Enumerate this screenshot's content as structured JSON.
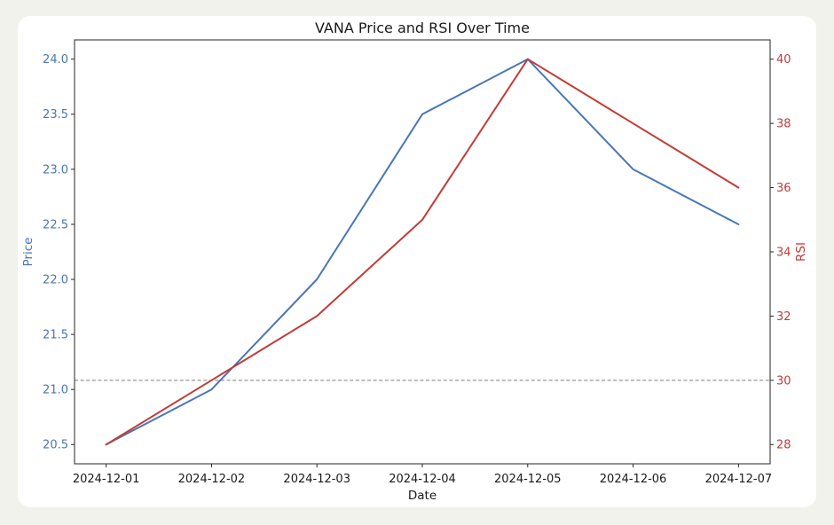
{
  "page": {
    "background_color": "#f0f2eb",
    "card_color": "#ffffff",
    "axis_color": "#262626",
    "text_color": "#1a1a1a"
  },
  "chart_data": {
    "type": "line",
    "title": "VANA Price and RSI Over Time",
    "xlabel": "Date",
    "x_tick_labels": [
      "2024-12-01",
      "2024-12-02",
      "2024-12-03",
      "2024-12-04",
      "2024-12-05",
      "2024-12-06",
      "2024-12-07"
    ],
    "left_axis": {
      "label": "Price",
      "color": "#4a76b6",
      "ticks": [
        20.5,
        21.0,
        21.5,
        22.0,
        22.5,
        23.0,
        23.5,
        24.0
      ],
      "tick_labels": [
        "20.5",
        "21.0",
        "21.5",
        "22.0",
        "22.5",
        "23.0",
        "23.5",
        "24.0"
      ],
      "range": [
        20.325,
        24.175
      ]
    },
    "right_axis": {
      "label": "RSI",
      "color": "#c23c39",
      "ticks": [
        28,
        30,
        32,
        34,
        36,
        38,
        40
      ],
      "tick_labels": [
        "28",
        "30",
        "32",
        "34",
        "36",
        "38",
        "40"
      ],
      "range": [
        27.4,
        40.6
      ]
    },
    "series": [
      {
        "name": "Price",
        "axis": "left",
        "color": "#4a76b6",
        "values": [
          20.5,
          21.0,
          22.0,
          23.5,
          24.0,
          23.0,
          22.5
        ]
      },
      {
        "name": "RSI",
        "axis": "right",
        "color": "#c23c39",
        "values": [
          28,
          30,
          32,
          35,
          40,
          38,
          36
        ]
      }
    ],
    "reference_line": {
      "axis": "right",
      "value": 30,
      "color": "#7f7f7f",
      "style": "dashed"
    },
    "grid": false,
    "legend": "none"
  }
}
